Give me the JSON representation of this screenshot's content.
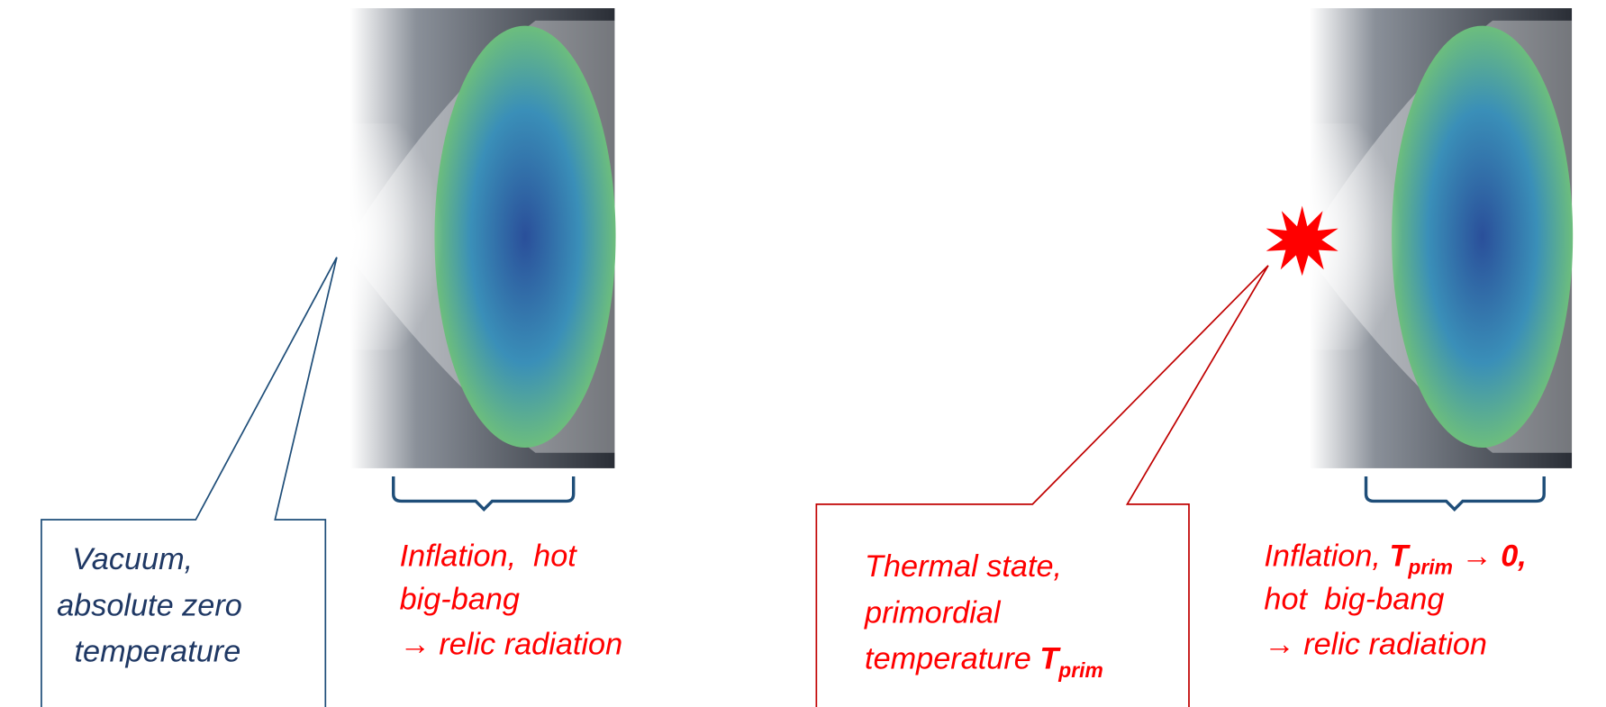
{
  "left": {
    "callout": {
      "lines": [
        "Vacuum,",
        "absolute zero",
        "temperature"
      ]
    },
    "caption": {
      "lines": [
        "Inflation,  hot",
        "big-bang",
        "→ relic radiation"
      ]
    }
  },
  "right": {
    "callout": {
      "lines": [
        "Thermal state,",
        "primordial"
      ],
      "last": {
        "text": "temperature ",
        "symbol": "T",
        "subscript": "prim"
      }
    },
    "caption": {
      "first": {
        "text": "Inflation, ",
        "symbol": "T",
        "subscript": "prim",
        "rest": " → 0,"
      },
      "lines": [
        "hot  big-bang",
        "→ relic radiation"
      ]
    }
  }
}
